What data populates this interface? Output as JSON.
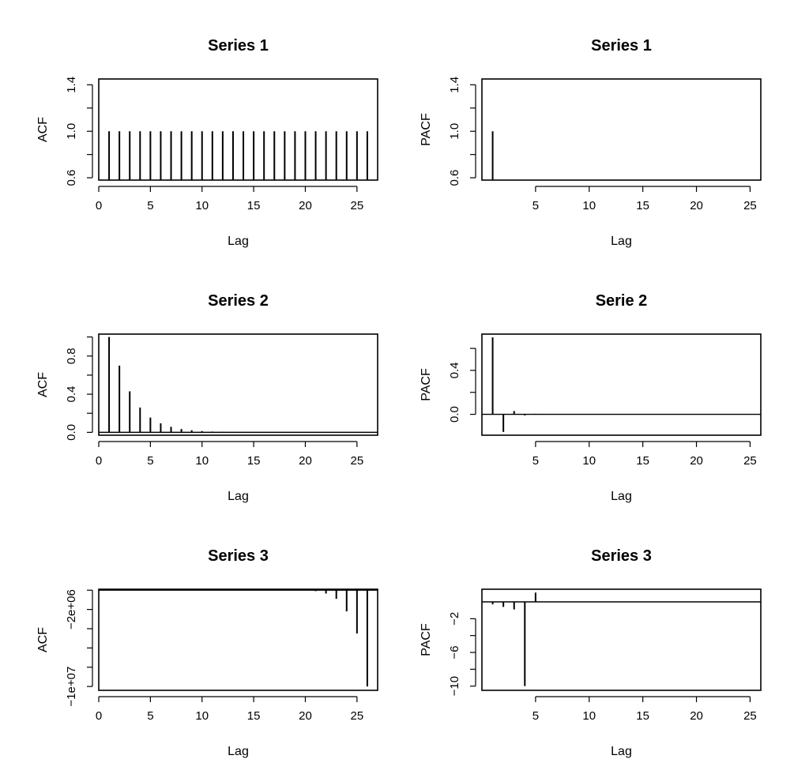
{
  "chart_data": [
    {
      "type": "bar",
      "title": "Series 1",
      "xlabel": "Lag",
      "ylabel": "ACF",
      "xlim": [
        0,
        27
      ],
      "ylim": [
        0.58,
        1.45
      ],
      "xticks": [
        0,
        5,
        10,
        15,
        20,
        25
      ],
      "yticks": [
        0.6,
        1.0,
        1.4
      ],
      "yminor": [
        0.8,
        1.2
      ],
      "ytick_labels": [
        "0.6",
        "1.0",
        "1.4"
      ],
      "baseline": 0,
      "lags": [
        1,
        2,
        3,
        4,
        5,
        6,
        7,
        8,
        9,
        10,
        11,
        12,
        13,
        14,
        15,
        16,
        17,
        18,
        19,
        20,
        21,
        22,
        23,
        24,
        25,
        26
      ],
      "values": [
        1,
        1,
        1,
        1,
        1,
        1,
        1,
        1,
        1,
        1,
        1,
        1,
        1,
        1,
        1,
        1,
        1,
        1,
        1,
        1,
        1,
        1,
        1,
        1,
        1,
        1
      ]
    },
    {
      "type": "bar",
      "title": "Series 1",
      "xlabel": "Lag",
      "ylabel": "PACF",
      "xlim": [
        0,
        26
      ],
      "ylim": [
        0.58,
        1.45
      ],
      "xticks": [
        5,
        10,
        15,
        20,
        25
      ],
      "yticks": [
        0.6,
        1.0,
        1.4
      ],
      "yminor": [
        0.8,
        1.2
      ],
      "ytick_labels": [
        "0.6",
        "1.0",
        "1.4"
      ],
      "baseline": 0,
      "lags": [
        1
      ],
      "values": [
        1.0
      ]
    },
    {
      "type": "bar",
      "title": "Series 2",
      "xlabel": "Lag",
      "ylabel": "ACF",
      "xlim": [
        0,
        27
      ],
      "ylim": [
        -0.03,
        1.03
      ],
      "xticks": [
        0,
        5,
        10,
        15,
        20,
        25
      ],
      "yticks": [
        0.0,
        0.4,
        0.8
      ],
      "yminor": [
        0.2,
        0.6,
        1.0
      ],
      "ytick_labels": [
        "0.0",
        "0.4",
        "0.8"
      ],
      "baseline": 0,
      "lags": [
        1,
        2,
        3,
        4,
        5,
        6,
        7,
        8,
        9,
        10,
        11,
        12,
        13,
        14,
        15,
        16,
        17,
        18,
        19,
        20,
        21,
        22,
        23,
        24,
        25,
        26
      ],
      "values": [
        1.0,
        0.7,
        0.43,
        0.26,
        0.155,
        0.095,
        0.058,
        0.035,
        0.022,
        0.013,
        0.008,
        0.005,
        0.003,
        0.002,
        0.001,
        0.001,
        0.001,
        0,
        0,
        0,
        0,
        0,
        0,
        0,
        0,
        0
      ]
    },
    {
      "type": "bar",
      "title": "Serie 2",
      "xlabel": "Lag",
      "ylabel": "PACF",
      "xlim": [
        0,
        26
      ],
      "ylim": [
        -0.19,
        0.73
      ],
      "xticks": [
        5,
        10,
        15,
        20,
        25
      ],
      "yticks": [
        0.0,
        0.4
      ],
      "yminor": [
        0.2,
        0.6
      ],
      "ytick_labels": [
        "0.0",
        "0.4"
      ],
      "baseline": 0,
      "lags": [
        1,
        2,
        3,
        4,
        5,
        6,
        7,
        8,
        9,
        10,
        11,
        12,
        13,
        14,
        15,
        16,
        17,
        18,
        19,
        20,
        21,
        22,
        23,
        24,
        25
      ],
      "values": [
        0.7,
        -0.16,
        0.03,
        -0.01,
        0.005,
        0,
        0,
        0,
        0,
        0,
        0,
        0,
        0,
        0,
        0,
        0,
        0,
        0,
        0,
        0,
        0,
        0,
        0,
        0,
        0
      ]
    },
    {
      "type": "bar",
      "title": "Series 3",
      "xlabel": "Lag",
      "ylabel": "ACF",
      "xlim": [
        0,
        27
      ],
      "ylim": [
        -10400000,
        100000
      ],
      "xticks": [
        0,
        5,
        10,
        15,
        20,
        25
      ],
      "yticks": [
        -10000000,
        -6000000,
        -2000000
      ],
      "yminor": [
        -8000000,
        -4000000,
        0
      ],
      "ytick_labels": [
        "−1e+07",
        "",
        "−2e+06"
      ],
      "baseline": 0,
      "lags": [
        20,
        21,
        22,
        23,
        24,
        25,
        26
      ],
      "values": [
        -30000,
        -100000,
        -350000,
        -900000,
        -2200000,
        -4500000,
        -10000000
      ]
    },
    {
      "type": "bar",
      "title": "Series 3",
      "xlabel": "Lag",
      "ylabel": "PACF",
      "xlim": [
        0,
        26
      ],
      "ylim": [
        -10.5,
        1.5
      ],
      "xticks": [
        5,
        10,
        15,
        20,
        25
      ],
      "yticks": [
        -10,
        -6,
        -2
      ],
      "yminor": [
        -8,
        -4
      ],
      "ytick_labels": [
        "−10",
        "−6",
        "−2"
      ],
      "baseline": 0,
      "lags": [
        1,
        2,
        3,
        4,
        5
      ],
      "values": [
        -0.3,
        -0.6,
        -0.9,
        -10,
        1.1
      ]
    }
  ]
}
